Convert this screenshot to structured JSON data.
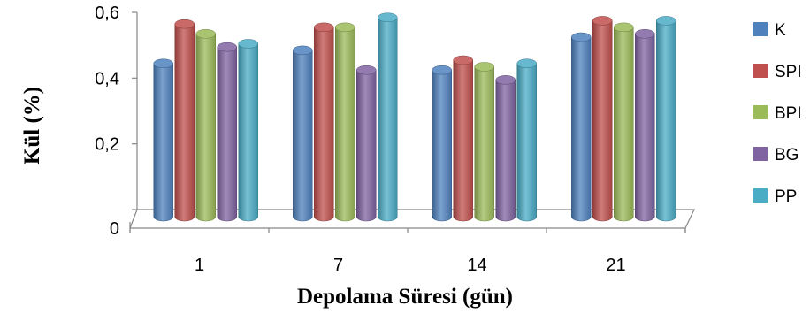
{
  "chart_data": {
    "type": "bar",
    "xlabel": "Depolama Süresi (gün)",
    "ylabel": "Kül (%)",
    "categories": [
      "1",
      "7",
      "14",
      "21"
    ],
    "ylim": [
      0,
      0.6
    ],
    "yticks": [
      "0",
      "0,2",
      "0,4",
      "0,6"
    ],
    "grid": false,
    "legend_position": "right",
    "series": [
      {
        "name": "K",
        "color": "#4F81BD",
        "values": [
          0.45,
          0.49,
          0.43,
          0.53
        ]
      },
      {
        "name": "SPI",
        "color": "#C0504D",
        "values": [
          0.57,
          0.56,
          0.46,
          0.58
        ]
      },
      {
        "name": "BPI",
        "color": "#9BBB59",
        "values": [
          0.54,
          0.56,
          0.44,
          0.56
        ]
      },
      {
        "name": "BG",
        "color": "#8064A2",
        "values": [
          0.5,
          0.43,
          0.4,
          0.54
        ]
      },
      {
        "name": "PP",
        "color": "#4BACC6",
        "values": [
          0.51,
          0.59,
          0.45,
          0.58
        ]
      }
    ]
  }
}
